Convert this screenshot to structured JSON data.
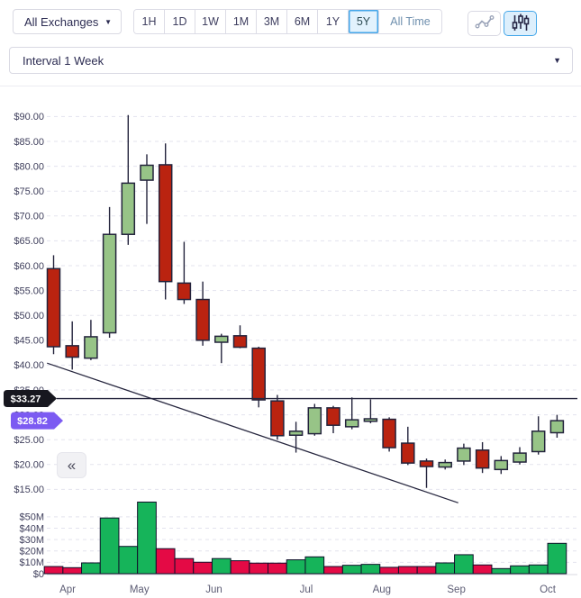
{
  "toolbar": {
    "exchange_selector": {
      "label": "All Exchanges"
    },
    "time_ranges": [
      {
        "label": "1H",
        "active": false
      },
      {
        "label": "1D",
        "active": false
      },
      {
        "label": "1W",
        "active": false
      },
      {
        "label": "1M",
        "active": false
      },
      {
        "label": "3M",
        "active": false
      },
      {
        "label": "6M",
        "active": false
      },
      {
        "label": "1Y",
        "active": false
      },
      {
        "label": "5Y",
        "active": true
      },
      {
        "label": "All Time",
        "active": false
      }
    ],
    "chart_type_toggle": [
      {
        "name": "line-chart",
        "active": false
      },
      {
        "name": "candlestick-chart",
        "active": true
      }
    ]
  },
  "interval_selector": {
    "label": "Interval 1 Week"
  },
  "side_panel_toggle": {
    "label": "«"
  },
  "price_badges": {
    "reference": {
      "text": "$33.27",
      "value": 33.27,
      "color": "#17171f"
    },
    "current": {
      "text": "$28.82",
      "value": 28.82,
      "color": "#7c5bf2"
    }
  },
  "chart_data": {
    "type": "candlestick",
    "interval": "1 Week",
    "price_axis": {
      "tick_labels": [
        "$90.00",
        "$85.00",
        "$80.00",
        "$75.00",
        "$70.00",
        "$65.00",
        "$60.00",
        "$55.00",
        "$50.00",
        "$45.00",
        "$40.00",
        "$35.00",
        "$30.00",
        "$25.00",
        "$20.00",
        "$15.00"
      ],
      "tick_values": [
        90,
        85,
        80,
        75,
        70,
        65,
        60,
        55,
        50,
        45,
        40,
        35,
        30,
        25,
        20,
        15
      ],
      "range": [
        12,
        92
      ],
      "grid": true
    },
    "volume_axis": {
      "tick_labels": [
        "$50M",
        "$40M",
        "$30M",
        "$20M",
        "$10M",
        "$0"
      ],
      "tick_values": [
        50,
        40,
        30,
        20,
        10,
        0
      ],
      "unit": "million USD"
    },
    "x_axis": {
      "month_labels": [
        {
          "label": "Apr",
          "index": 0.75
        },
        {
          "label": "May",
          "index": 4.6
        },
        {
          "label": "Jun",
          "index": 8.6
        },
        {
          "label": "Jul",
          "index": 13.55
        },
        {
          "label": "Aug",
          "index": 17.6
        },
        {
          "label": "Sep",
          "index": 21.6
        },
        {
          "label": "Oct",
          "index": 26.5
        }
      ]
    },
    "candles": [
      {
        "o": 59.4,
        "h": 62.1,
        "l": 42.2,
        "c": 43.7,
        "dir": "down"
      },
      {
        "o": 43.9,
        "h": 48.8,
        "l": 39.1,
        "c": 41.6,
        "dir": "down"
      },
      {
        "o": 41.4,
        "h": 49.1,
        "l": 41.0,
        "c": 45.7,
        "dir": "up"
      },
      {
        "o": 46.5,
        "h": 71.8,
        "l": 45.5,
        "c": 66.3,
        "dir": "up"
      },
      {
        "o": 66.3,
        "h": 90.3,
        "l": 64.2,
        "c": 76.6,
        "dir": "up"
      },
      {
        "o": 77.2,
        "h": 82.4,
        "l": 68.4,
        "c": 80.2,
        "dir": "up"
      },
      {
        "o": 80.3,
        "h": 84.6,
        "l": 53.2,
        "c": 56.8,
        "dir": "down"
      },
      {
        "o": 56.5,
        "h": 64.8,
        "l": 52.3,
        "c": 53.2,
        "dir": "down"
      },
      {
        "o": 53.2,
        "h": 56.8,
        "l": 43.9,
        "c": 45.0,
        "dir": "down"
      },
      {
        "o": 44.6,
        "h": 46.3,
        "l": 40.4,
        "c": 45.8,
        "dir": "up"
      },
      {
        "o": 45.9,
        "h": 48.0,
        "l": 43.4,
        "c": 43.6,
        "dir": "down"
      },
      {
        "o": 43.4,
        "h": 43.7,
        "l": 31.5,
        "c": 33.0,
        "dir": "down"
      },
      {
        "o": 32.8,
        "h": 34.0,
        "l": 25.0,
        "c": 25.8,
        "dir": "down"
      },
      {
        "o": 25.9,
        "h": 28.6,
        "l": 22.4,
        "c": 26.7,
        "dir": "up"
      },
      {
        "o": 26.2,
        "h": 32.2,
        "l": 25.8,
        "c": 31.4,
        "dir": "up"
      },
      {
        "o": 31.4,
        "h": 31.8,
        "l": 26.3,
        "c": 27.9,
        "dir": "down"
      },
      {
        "o": 27.6,
        "h": 33.5,
        "l": 27.1,
        "c": 29.0,
        "dir": "up"
      },
      {
        "o": 28.7,
        "h": 33.1,
        "l": 28.3,
        "c": 29.2,
        "dir": "up"
      },
      {
        "o": 29.1,
        "h": 29.5,
        "l": 22.6,
        "c": 23.4,
        "dir": "down"
      },
      {
        "o": 24.3,
        "h": 27.6,
        "l": 19.9,
        "c": 20.3,
        "dir": "down"
      },
      {
        "o": 20.7,
        "h": 21.2,
        "l": 15.3,
        "c": 19.6,
        "dir": "down"
      },
      {
        "o": 19.5,
        "h": 21.0,
        "l": 19.0,
        "c": 20.4,
        "dir": "up"
      },
      {
        "o": 20.7,
        "h": 24.2,
        "l": 19.9,
        "c": 23.3,
        "dir": "up"
      },
      {
        "o": 22.9,
        "h": 24.5,
        "l": 18.3,
        "c": 19.3,
        "dir": "down"
      },
      {
        "o": 19.0,
        "h": 21.7,
        "l": 18.1,
        "c": 20.8,
        "dir": "up"
      },
      {
        "o": 20.5,
        "h": 23.5,
        "l": 20.0,
        "c": 22.3,
        "dir": "up"
      },
      {
        "o": 22.6,
        "h": 29.7,
        "l": 22.0,
        "c": 26.7,
        "dir": "up"
      },
      {
        "o": 26.4,
        "h": 30.0,
        "l": 25.4,
        "c": 28.82,
        "dir": "up"
      }
    ],
    "volumes_musd": [
      6.3,
      5.3,
      9.5,
      49,
      24,
      63,
      22,
      13.3,
      10.1,
      13.3,
      11.4,
      9.3,
      9.3,
      12.2,
      14.8,
      6.3,
      7.4,
      8.2,
      5.6,
      6.3,
      6.3,
      9.5,
      16.7,
      7.7,
      4.5,
      6.9,
      7.7,
      26.7
    ],
    "annotations": {
      "horizontal_line_price": 33.27,
      "current_price": 28.82,
      "trendline": {
        "from_index": -0.35,
        "from_price": 40.4,
        "to_index": 21.7,
        "to_price": 12.3
      }
    },
    "colors": {
      "candle_up": "#97c487",
      "candle_down": "#ba2310",
      "candle_outline": "#23233c",
      "volume_up": "#16b45a",
      "volume_down": "#e40a45",
      "volume_outline": "#10102a",
      "grid": "#e3e3ee",
      "axis_text": "#3f3f5c",
      "month_text": "#5c5c74",
      "line": "#26263e",
      "pane_border": "#ececf2"
    }
  }
}
